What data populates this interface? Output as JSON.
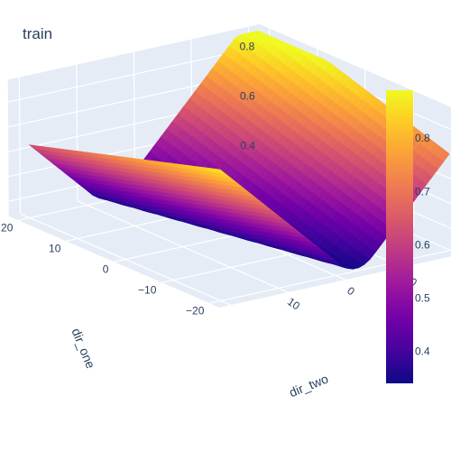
{
  "chart_data": {
    "type": "surface",
    "title": "train",
    "x_axis": {
      "title": "dir_two",
      "ticks": [
        10,
        0,
        -10,
        -20
      ]
    },
    "y_axis": {
      "title": "dir_one",
      "ticks": [
        20,
        10,
        0,
        -10,
        -20
      ]
    },
    "z_axis": {
      "title": "",
      "ticks": [
        0.4,
        0.6,
        0.8
      ]
    },
    "colorbar": {
      "min": 0.34,
      "max": 0.89,
      "ticks": [
        0.4,
        0.5,
        0.6,
        0.7,
        0.8
      ]
    },
    "colorscale": [
      "#0d0887",
      "#46039f",
      "#7201a8",
      "#9c179e",
      "#bd3786",
      "#d8576b",
      "#ed7953",
      "#fb9f3a",
      "#fdca26",
      "#f0f921"
    ],
    "grid": true,
    "background": "#e5ecf6"
  }
}
